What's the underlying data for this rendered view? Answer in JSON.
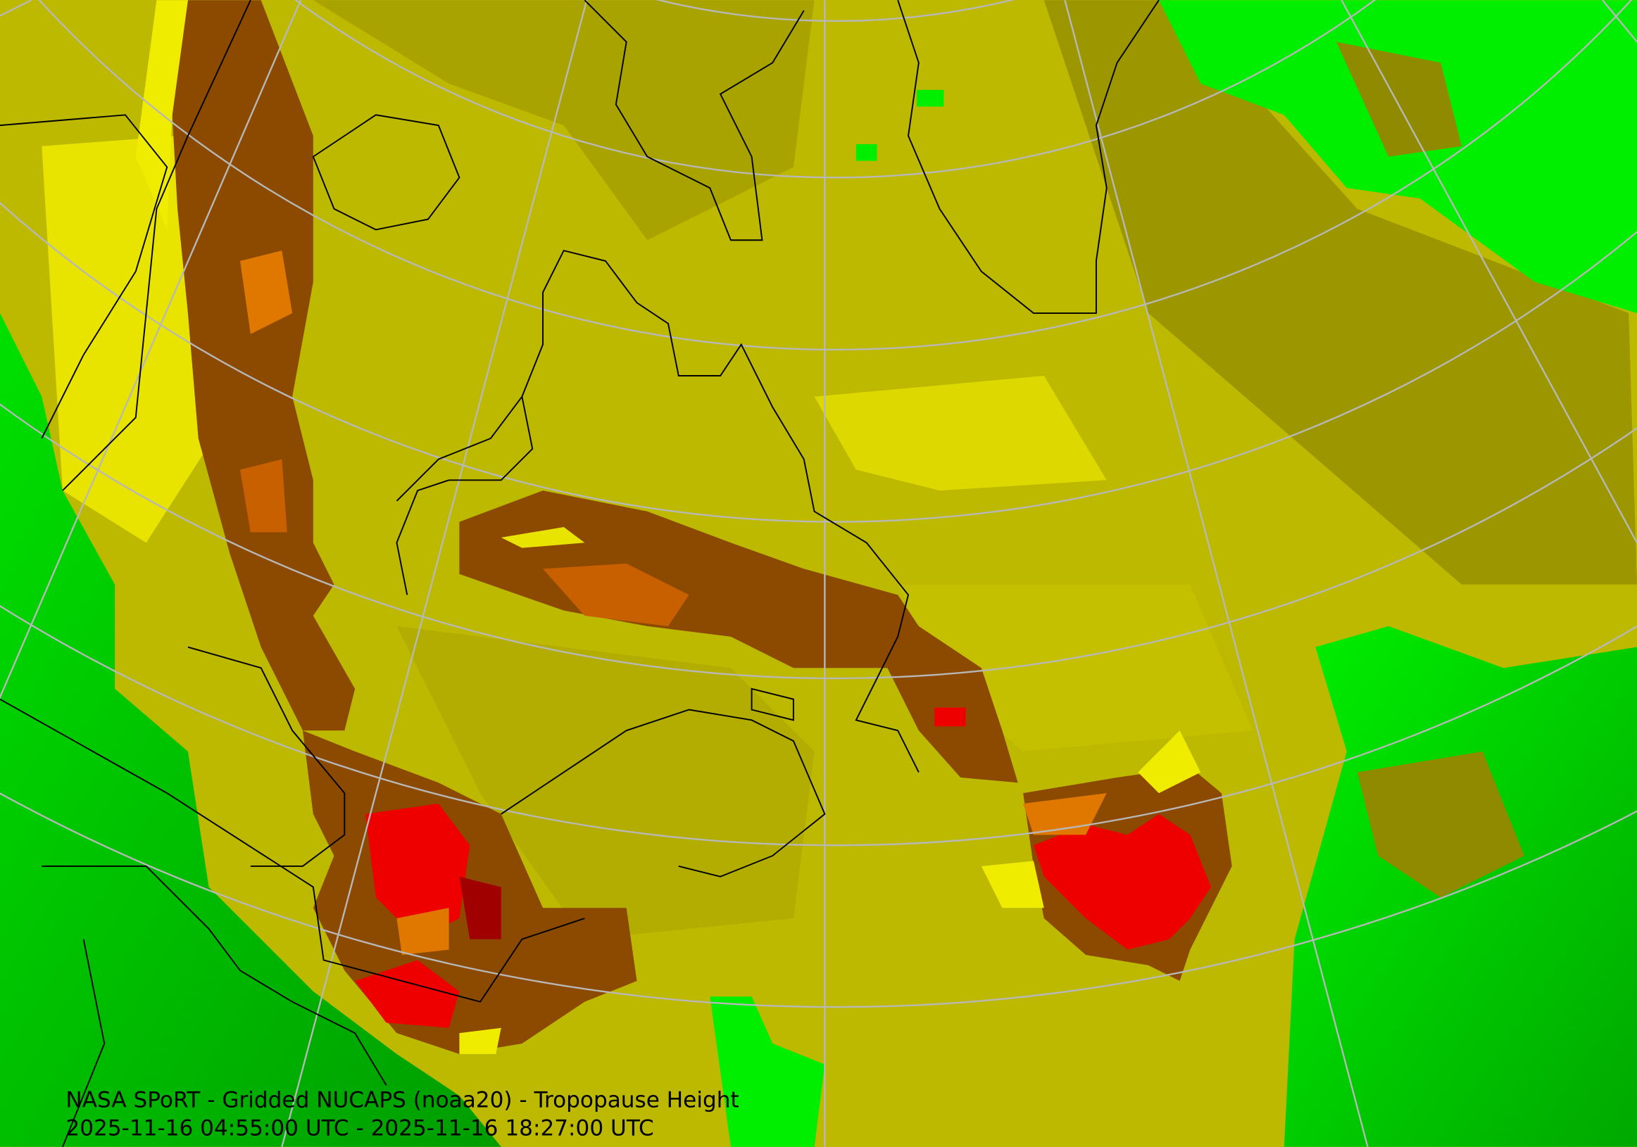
{
  "map": {
    "title": "NASA SPoRT - Gridded NUCAPS (noaa20) - Tropopause Height",
    "time_range": "2025-11-16 04:55:00 UTC - 2025-11-16 18:27:00 UTC"
  }
}
